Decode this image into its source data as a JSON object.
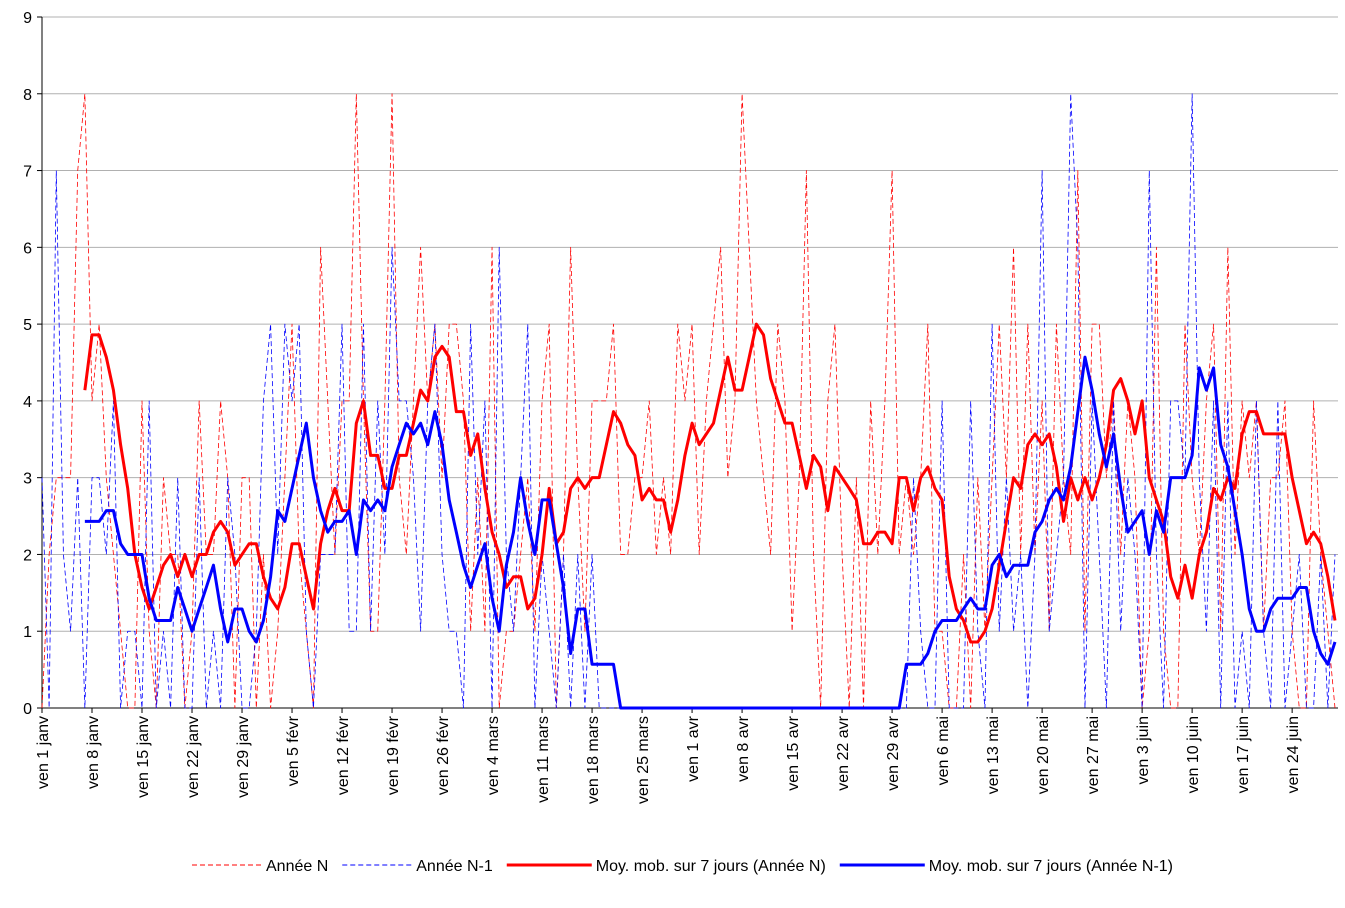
{
  "chart_data": {
    "type": "line",
    "categories": [
      "ven 1 janv",
      null,
      null,
      null,
      null,
      null,
      null,
      "ven 8 janv",
      null,
      null,
      null,
      null,
      null,
      null,
      "ven 15 janv",
      null,
      null,
      null,
      null,
      null,
      null,
      "ven 22 janv",
      null,
      null,
      null,
      null,
      null,
      null,
      "ven 29 janv",
      null,
      null,
      null,
      null,
      null,
      null,
      "ven 5 févr",
      null,
      null,
      null,
      null,
      null,
      null,
      "ven 12 févr",
      null,
      null,
      null,
      null,
      null,
      null,
      "ven 19 févr",
      null,
      null,
      null,
      null,
      null,
      null,
      "ven 26 févr",
      null,
      null,
      null,
      null,
      null,
      null,
      "ven 4 mars",
      null,
      null,
      null,
      null,
      null,
      null,
      "ven 11 mars",
      null,
      null,
      null,
      null,
      null,
      null,
      "ven 18 mars",
      null,
      null,
      null,
      null,
      null,
      null,
      "ven 25 mars",
      null,
      null,
      null,
      null,
      null,
      null,
      "ven 1 avr",
      null,
      null,
      null,
      null,
      null,
      null,
      "ven 8 avr",
      null,
      null,
      null,
      null,
      null,
      null,
      "ven 15 avr",
      null,
      null,
      null,
      null,
      null,
      null,
      "ven 22 avr",
      null,
      null,
      null,
      null,
      null,
      null,
      "ven 29 avr",
      null,
      null,
      null,
      null,
      null,
      null,
      "ven 6 mai",
      null,
      null,
      null,
      null,
      null,
      null,
      "ven 13 mai",
      null,
      null,
      null,
      null,
      null,
      null,
      "ven 20 mai",
      null,
      null,
      null,
      null,
      null,
      null,
      "ven 27 mai",
      null,
      null,
      null,
      null,
      null,
      null,
      "ven 3 juin",
      null,
      null,
      null,
      null,
      null,
      null,
      "ven 10 juin",
      null,
      null,
      null,
      null,
      null,
      null,
      "ven 17 juin",
      null,
      null,
      null,
      null,
      null,
      null,
      "ven 24 juin",
      null,
      null,
      null,
      null,
      null,
      null
    ],
    "series": [
      {
        "name": "Année N",
        "color": "#ff0000",
        "style": "dashed",
        "values": [
          0,
          2,
          3,
          3,
          3,
          7,
          8,
          4,
          5,
          3,
          2,
          1,
          0,
          0,
          4,
          1,
          0,
          3,
          2,
          2,
          0,
          1,
          4,
          2,
          2,
          4,
          3,
          0,
          3,
          3,
          0,
          2,
          0,
          1,
          3,
          5,
          2,
          1,
          0,
          6,
          4,
          2,
          4,
          4,
          8,
          4,
          1,
          1,
          4,
          8,
          3,
          2,
          4,
          6,
          4,
          5,
          3,
          5,
          5,
          4,
          1,
          3,
          1,
          6,
          0,
          1,
          1,
          2,
          3,
          1,
          4,
          5,
          0,
          2,
          6,
          3,
          1,
          4,
          4,
          4,
          5,
          2,
          2,
          3,
          3,
          4,
          2,
          3,
          2,
          5,
          4,
          5,
          2,
          4,
          5,
          6,
          3,
          4,
          8,
          6,
          4,
          3,
          2,
          5,
          4,
          1,
          3,
          7,
          2,
          0,
          4,
          5,
          2,
          0,
          3,
          0,
          4,
          2,
          4,
          7,
          2,
          3,
          2,
          3,
          5,
          1,
          1,
          0,
          0,
          2,
          0,
          3,
          1,
          3,
          5,
          3,
          6,
          2,
          5,
          2,
          4,
          1,
          5,
          3,
          2,
          7,
          1,
          5,
          5,
          3,
          4,
          2,
          4,
          3,
          0,
          1,
          6,
          1,
          0,
          0,
          5,
          3,
          2,
          4,
          5,
          1,
          6,
          2,
          4,
          3,
          4,
          1,
          3,
          3,
          4,
          1,
          0,
          0,
          4,
          2,
          1,
          0
        ]
      },
      {
        "name": "Année N-1",
        "color": "#0000ff",
        "style": "dashed",
        "values": [
          3,
          0,
          7,
          2,
          1,
          3,
          0,
          3,
          3,
          2,
          4,
          0,
          1,
          1,
          0,
          4,
          0,
          1,
          0,
          3,
          0,
          0,
          3,
          0,
          1,
          0,
          3,
          2,
          0,
          0,
          1,
          4,
          5,
          2,
          5,
          4,
          5,
          1,
          0,
          2,
          2,
          2,
          5,
          1,
          1,
          5,
          1,
          4,
          2,
          6,
          4,
          4,
          3,
          1,
          4,
          5,
          2,
          1,
          1,
          0,
          5,
          2,
          4,
          0,
          6,
          2,
          1,
          3,
          5,
          0,
          2,
          1,
          0,
          2,
          0,
          2,
          0,
          2,
          0,
          0,
          0,
          0,
          0,
          0,
          0,
          0,
          0,
          0,
          0,
          0,
          0,
          0,
          0,
          0,
          0,
          0,
          0,
          0,
          0,
          0,
          0,
          0,
          0,
          0,
          0,
          0,
          0,
          0,
          0,
          0,
          0,
          0,
          0,
          0,
          0,
          0,
          0,
          0,
          0,
          0,
          0,
          0,
          3,
          1,
          0,
          0,
          4,
          0,
          0,
          0,
          4,
          1,
          0,
          5,
          1,
          3,
          1,
          2,
          0,
          2,
          7,
          1,
          2,
          3,
          8,
          6,
          0,
          4,
          2,
          0,
          4,
          1,
          3,
          2,
          0,
          7,
          2,
          0,
          4,
          4,
          3,
          8,
          3,
          1,
          4,
          0,
          4,
          0,
          1,
          0,
          4,
          1,
          0,
          4,
          0,
          1,
          2,
          0,
          0,
          2,
          0,
          2
        ]
      },
      {
        "name": "Moy. mob. sur 7 jours (Année N)",
        "color": "#ff0000",
        "style": "solid",
        "values": [
          null,
          null,
          null,
          null,
          null,
          null,
          4.14,
          4.86,
          4.86,
          4.57,
          4.14,
          3.43,
          2.86,
          2.0,
          1.57,
          1.29,
          1.57,
          1.86,
          2.0,
          1.71,
          2.0,
          1.71,
          2.0,
          2.0,
          2.29,
          2.43,
          2.29,
          1.86,
          2.0,
          2.14,
          2.14,
          1.71,
          1.43,
          1.29,
          1.57,
          2.14,
          2.14,
          1.71,
          1.29,
          2.14,
          2.57,
          2.86,
          2.57,
          2.57,
          3.71,
          4.0,
          3.29,
          3.29,
          2.86,
          2.86,
          3.29,
          3.29,
          3.71,
          4.14,
          4.0,
          4.57,
          4.71,
          4.57,
          3.86,
          3.86,
          3.29,
          3.57,
          2.86,
          2.29,
          2.0,
          1.57,
          1.71,
          1.71,
          1.29,
          1.43,
          2.0,
          2.86,
          2.14,
          2.29,
          2.86,
          3.0,
          2.86,
          3.0,
          3.0,
          3.43,
          3.86,
          3.71,
          3.43,
          3.29,
          2.71,
          2.86,
          2.71,
          2.71,
          2.29,
          2.71,
          3.29,
          3.71,
          3.43,
          3.57,
          3.71,
          4.14,
          4.57,
          4.14,
          4.14,
          4.57,
          5.0,
          4.86,
          4.29,
          4.0,
          3.71,
          3.71,
          3.29,
          2.86,
          3.29,
          3.14,
          2.57,
          3.14,
          3.0,
          2.86,
          2.71,
          2.14,
          2.14,
          2.29,
          2.29,
          2.14,
          3.0,
          3.0,
          2.57,
          3.0,
          3.14,
          2.86,
          2.71,
          1.71,
          1.29,
          1.14,
          0.86,
          0.86,
          1.0,
          1.29,
          1.86,
          2.43,
          3.0,
          2.86,
          3.43,
          3.57,
          3.43,
          3.57,
          3.14,
          2.43,
          3.0,
          2.71,
          3.0,
          2.71,
          3.0,
          3.43,
          4.14,
          4.29,
          4.0,
          3.57,
          4.0,
          3.0,
          2.71,
          2.43,
          1.71,
          1.43,
          1.86,
          1.43,
          2.0,
          2.29,
          2.86,
          2.71,
          3.0,
          2.86,
          3.57,
          3.86,
          3.86,
          3.57,
          3.57,
          3.57,
          3.57,
          3.0,
          2.57,
          2.14,
          2.29,
          2.14,
          1.71,
          1.14
        ]
      },
      {
        "name": "Moy. mob. sur 7 jours (Année N-1)",
        "color": "#0000ff",
        "style": "solid",
        "values": [
          null,
          null,
          null,
          null,
          null,
          null,
          2.43,
          2.43,
          2.43,
          2.57,
          2.57,
          2.14,
          2.0,
          2.0,
          2.0,
          1.43,
          1.14,
          1.14,
          1.14,
          1.57,
          1.29,
          1.0,
          1.29,
          1.57,
          1.86,
          1.29,
          0.86,
          1.29,
          1.29,
          1.0,
          0.86,
          1.14,
          1.71,
          2.57,
          2.43,
          2.86,
          3.29,
          3.71,
          3.0,
          2.57,
          2.29,
          2.43,
          2.43,
          2.57,
          2.0,
          2.71,
          2.57,
          2.71,
          2.57,
          3.14,
          3.43,
          3.71,
          3.57,
          3.71,
          3.43,
          3.86,
          3.43,
          2.71,
          2.29,
          1.86,
          1.57,
          1.86,
          2.14,
          1.43,
          1.0,
          1.86,
          2.29,
          3.0,
          2.43,
          2.0,
          2.71,
          2.71,
          2.14,
          1.57,
          0.71,
          1.29,
          1.29,
          0.57,
          0.57,
          0.57,
          0.57,
          0,
          0,
          0,
          0,
          0,
          0,
          0,
          0,
          0,
          0,
          0,
          0,
          0,
          0,
          0,
          0,
          0,
          0,
          0,
          0,
          0,
          0,
          0,
          0,
          0,
          0,
          0,
          0,
          0,
          0,
          0,
          0,
          0,
          0,
          0,
          0,
          0,
          0,
          0,
          0,
          0.57,
          0.57,
          0.57,
          0.71,
          1.0,
          1.14,
          1.14,
          1.14,
          1.29,
          1.43,
          1.29,
          1.29,
          1.86,
          2.0,
          1.71,
          1.86,
          1.86,
          1.86,
          2.29,
          2.43,
          2.71,
          2.86,
          2.71,
          3.14,
          3.86,
          4.57,
          4.14,
          3.57,
          3.14,
          3.57,
          2.86,
          2.29,
          2.43,
          2.57,
          2.0,
          2.57,
          2.29,
          3.0,
          3.0,
          3.0,
          3.29,
          4.43,
          4.14,
          4.43,
          3.43,
          3.14,
          2.57,
          2.0,
          1.29,
          1.0,
          1.0,
          1.29,
          1.43,
          1.43,
          1.43,
          1.57,
          1.57,
          1.0,
          0.71,
          0.57,
          0.86
        ]
      }
    ],
    "ylim": [
      0,
      9
    ],
    "yticks": [
      0,
      1,
      2,
      3,
      4,
      5,
      6,
      7,
      8,
      9
    ],
    "grid": true,
    "legend": "bottom"
  }
}
